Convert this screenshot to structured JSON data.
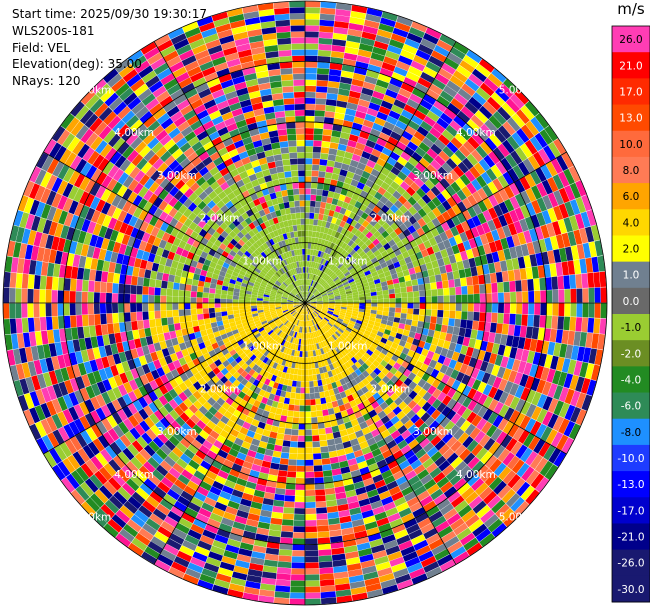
{
  "info": {
    "start_time": "Start time: 2025/09/30 19:30:17",
    "instrument": "WLS200s-181",
    "field": "Field: VEL",
    "elevation": "Elevation(deg): 35.00",
    "nrays": "NRays: 120"
  },
  "colorbar": {
    "unit": "m/s",
    "levels": [
      {
        "label": "26.0",
        "color": "#ff3db4"
      },
      {
        "label": "21.0",
        "color": "#ff0000"
      },
      {
        "label": "17.0",
        "color": "#ff2a00"
      },
      {
        "label": "13.0",
        "color": "#ff4a00"
      },
      {
        "label": "10.0",
        "color": "#ff6a3c"
      },
      {
        "label": "8.0",
        "color": "#ff7b55"
      },
      {
        "label": "6.0",
        "color": "#ffa500"
      },
      {
        "label": "4.0",
        "color": "#ffd700"
      },
      {
        "label": "2.0",
        "color": "#ffff00"
      },
      {
        "label": "1.0",
        "color": "#708090"
      },
      {
        "label": "0.0",
        "color": "#696969"
      },
      {
        "label": "-1.0",
        "color": "#9acd32"
      },
      {
        "label": "-2.0",
        "color": "#6b8e23"
      },
      {
        "label": "-4.0",
        "color": "#228b22"
      },
      {
        "label": "-6.0",
        "color": "#2e8b57"
      },
      {
        "label": "-8.0",
        "color": "#1e90ff"
      },
      {
        "label": "-10.0",
        "color": "#1e3cff"
      },
      {
        "label": "-13.0",
        "color": "#0000ff"
      },
      {
        "label": "-17.0",
        "color": "#0000cd"
      },
      {
        "label": "-21.0",
        "color": "#00008b"
      },
      {
        "label": "-26.0",
        "color": "#191970"
      },
      {
        "label": "-30.0",
        "color": "#191970"
      }
    ]
  },
  "range_labels": [
    "1.00km",
    "2.00km",
    "3.00km",
    "4.00km",
    "5.00km"
  ],
  "chart_data": {
    "type": "heatmap",
    "projection": "polar (PPI)",
    "nrays": 120,
    "range_rings_km": [
      1,
      2,
      3,
      4,
      5
    ],
    "max_range_km": 5,
    "spokes_deg": [
      0,
      30,
      60,
      90,
      120,
      150,
      180,
      210,
      240,
      270,
      300,
      330
    ],
    "field": "VEL",
    "units": "m/s",
    "zones": [
      {
        "region": "west, 0-1.3 km",
        "value_m_s": 2.0
      },
      {
        "region": "east, 0-1.3 km",
        "value_m_s": -1.5
      },
      {
        "region": "beyond ~2.5 km",
        "value_m_s": "noise (random)"
      }
    ]
  }
}
